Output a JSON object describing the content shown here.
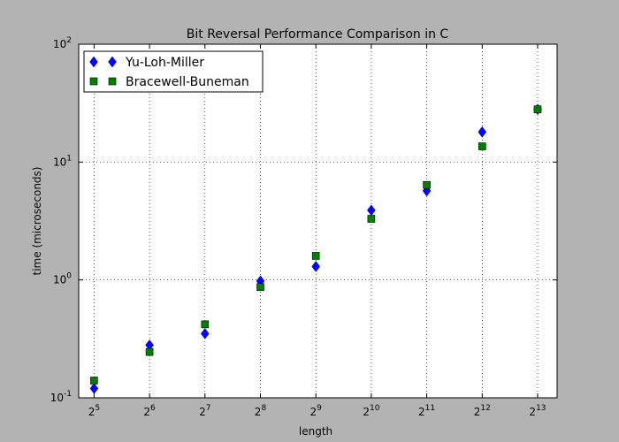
{
  "chart_data": {
    "type": "scatter",
    "title": "Bit Reversal Performance Comparison in C",
    "xlabel": "length",
    "ylabel": "time (microseconds)",
    "x_scale": "log2",
    "y_scale": "log10",
    "xlim": [
      26.4,
      10450
    ],
    "ylim": [
      0.1,
      100
    ],
    "x_ticks": [
      {
        "value": 32,
        "base": "2",
        "exp": "5"
      },
      {
        "value": 64,
        "base": "2",
        "exp": "6"
      },
      {
        "value": 128,
        "base": "2",
        "exp": "7"
      },
      {
        "value": 256,
        "base": "2",
        "exp": "8"
      },
      {
        "value": 512,
        "base": "2",
        "exp": "9"
      },
      {
        "value": 1024,
        "base": "2",
        "exp": "10"
      },
      {
        "value": 2048,
        "base": "2",
        "exp": "11"
      },
      {
        "value": 4096,
        "base": "2",
        "exp": "12"
      },
      {
        "value": 8192,
        "base": "2",
        "exp": "13"
      }
    ],
    "y_ticks": [
      {
        "value": 0.1,
        "base": "10",
        "exp": "-1"
      },
      {
        "value": 1,
        "base": "10",
        "exp": "0"
      },
      {
        "value": 10,
        "base": "10",
        "exp": "1"
      },
      {
        "value": 100,
        "base": "10",
        "exp": "2"
      }
    ],
    "grid": true,
    "legend_position": "top-left",
    "series": [
      {
        "name": "Yu-Loh-Miller",
        "marker": "diamond",
        "color": "#0000ff",
        "x": [
          32,
          64,
          128,
          256,
          512,
          1024,
          2048,
          4096,
          8192
        ],
        "y": [
          0.12,
          0.28,
          0.35,
          0.98,
          1.3,
          3.9,
          5.7,
          18.0,
          28.0
        ]
      },
      {
        "name": "Bracewell-Buneman",
        "marker": "square",
        "color": "#008000",
        "x": [
          32,
          64,
          128,
          256,
          512,
          1024,
          2048,
          4096,
          8192
        ],
        "y": [
          0.14,
          0.245,
          0.42,
          0.87,
          1.6,
          3.3,
          6.4,
          13.6,
          28.0
        ]
      }
    ]
  }
}
